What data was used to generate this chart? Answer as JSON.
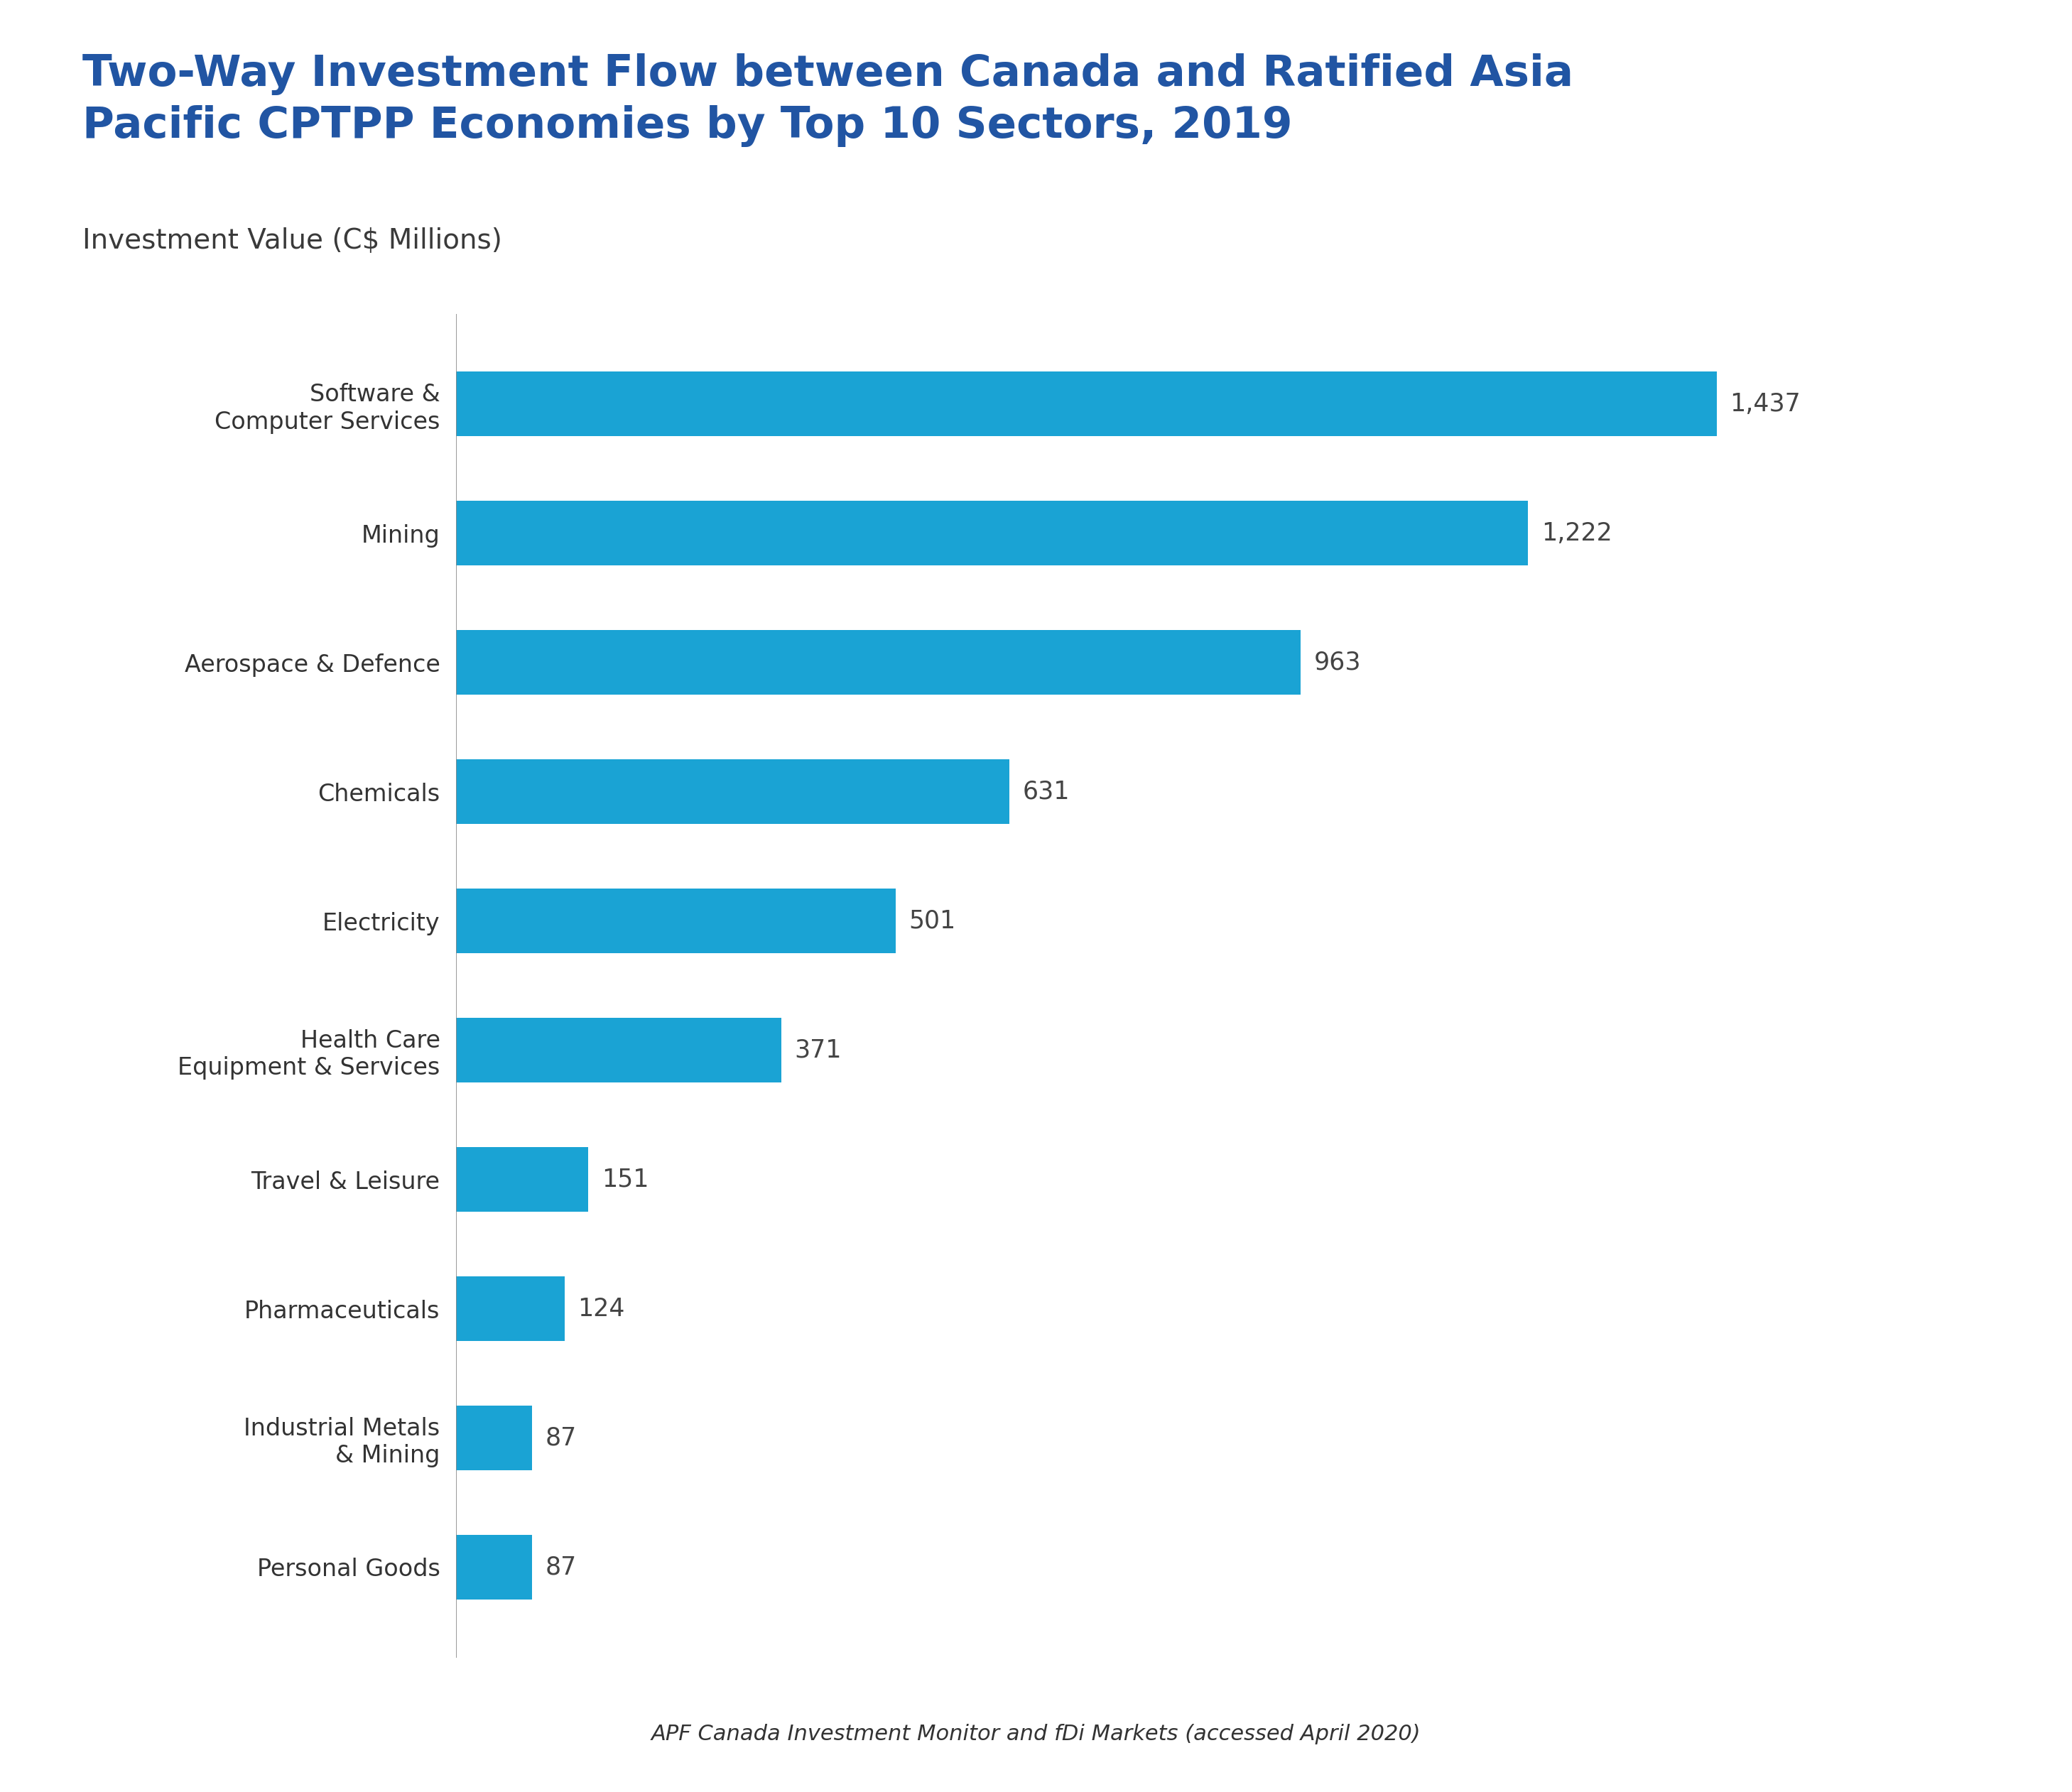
{
  "title_line1": "Two-Way Investment Flow between Canada and Ratified Asia",
  "title_line2": "Pacific CPTPP Economies by Top 10 Sectors, 2019",
  "subtitle": "Investment Value (C$ Millions)",
  "footnote": "APF Canada Investment Monitor and fDi Markets (accessed April 2020)",
  "categories": [
    "Software &\nComputer Services",
    "Mining",
    "Aerospace & Defence",
    "Chemicals",
    "Electricity",
    "Health Care\nEquipment & Services",
    "Travel & Leisure",
    "Pharmaceuticals",
    "Industrial Metals\n& Mining",
    "Personal Goods"
  ],
  "values": [
    1437,
    1222,
    963,
    631,
    501,
    371,
    151,
    124,
    87,
    87
  ],
  "bar_color": "#1aa3d4",
  "title_color": "#2155a3",
  "subtitle_color": "#3a3a3a",
  "header_bg_color": "#ddeef5",
  "footer_bg_color": "#e8e8e8",
  "chart_bg_color": "#ffffff",
  "value_label_color": "#444444",
  "category_label_color": "#333333",
  "footnote_color": "#333333",
  "vline_color": "#888888",
  "xlim": [
    0,
    1700
  ]
}
